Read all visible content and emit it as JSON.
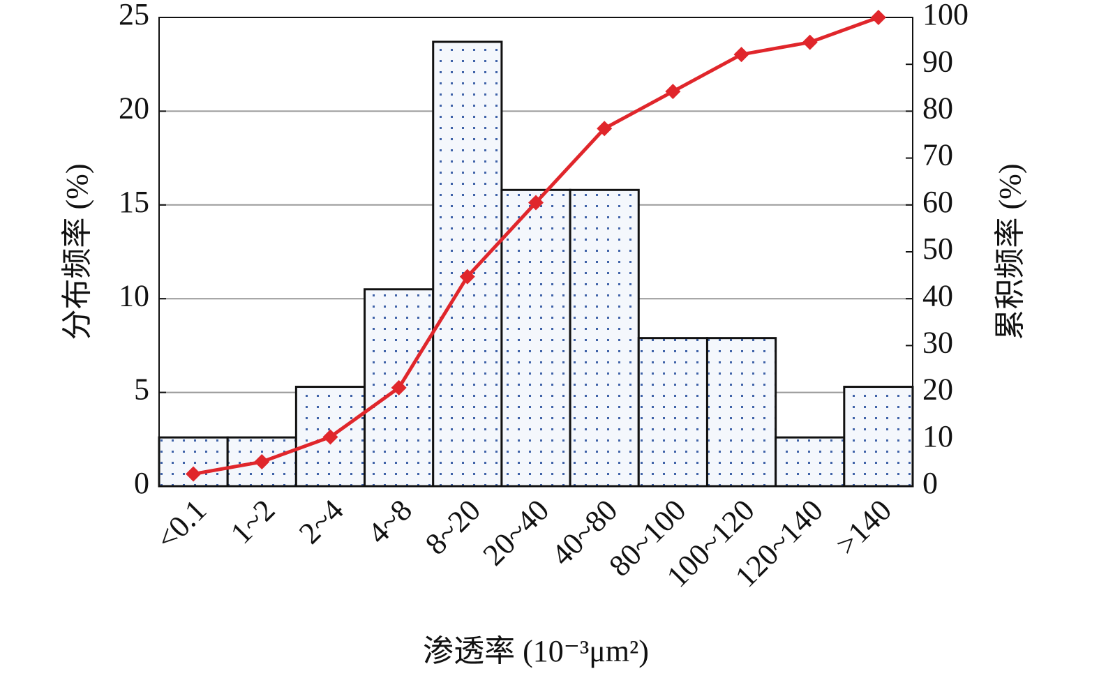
{
  "chart_data": {
    "type": "bar_line",
    "y_label": "分布频率 (%)",
    "y2_label": "累积频率 (%)",
    "x_label": "渗透率 (10⁻³μm²)",
    "categories": [
      "<0.1",
      "1~2",
      "2~4",
      "4~8",
      "8~20",
      "20~40",
      "40~80",
      "80~100",
      "100~120",
      "120~140",
      ">140"
    ],
    "series": [
      {
        "type": "bar",
        "color": "#3f62a8",
        "axis": "y",
        "values": [
          2.6,
          2.6,
          5.3,
          10.5,
          23.7,
          15.8,
          15.8,
          7.9,
          7.9,
          2.6,
          5.3
        ]
      },
      {
        "type": "line",
        "color": "#e0262b",
        "axis": "y2",
        "values": [
          2.6,
          5.2,
          10.5,
          21.0,
          44.7,
          60.5,
          76.3,
          84.2,
          92.1,
          94.7,
          100
        ]
      }
    ],
    "ylim": [
      0,
      25
    ],
    "yticks": [
      0,
      5,
      10,
      15,
      20,
      25
    ],
    "y2lim": [
      0,
      100
    ],
    "y2ticks": [
      0,
      10,
      20,
      30,
      40,
      50,
      60,
      70,
      80,
      90,
      100
    ],
    "grid": true
  }
}
